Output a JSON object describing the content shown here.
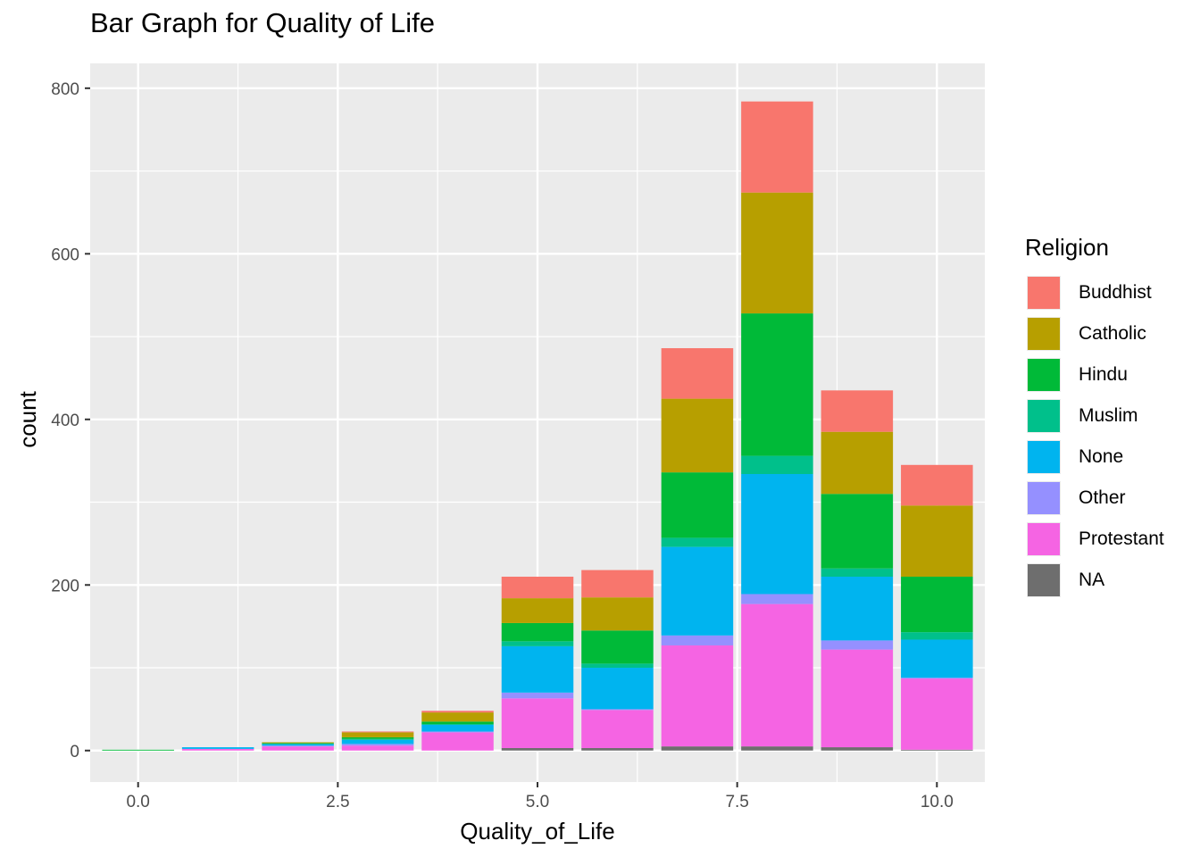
{
  "chart_data": {
    "type": "bar",
    "stacked": true,
    "title": "Bar Graph for Quality of Life",
    "xlabel": "Quality_of_Life",
    "ylabel": "count",
    "x": [
      0,
      1,
      2,
      3,
      4,
      5,
      6,
      7,
      8,
      9,
      10
    ],
    "xlim": [
      -0.6,
      10.6
    ],
    "ylim": [
      -38,
      830
    ],
    "xticks": [
      0,
      2.5,
      5,
      7.5,
      10
    ],
    "xtick_labels": [
      "0.0",
      "2.5",
      "5.0",
      "7.5",
      "10.0"
    ],
    "yticks": [
      0,
      200,
      400,
      600,
      800
    ],
    "ytick_labels": [
      "0",
      "200",
      "400",
      "600",
      "800"
    ],
    "grid": true,
    "legend_title": "Religion",
    "legend_position": "right",
    "series": [
      {
        "name": "Buddhist",
        "color": "#F8766D",
        "values": [
          0,
          0,
          0,
          1,
          2,
          26,
          33,
          61,
          110,
          50,
          49
        ]
      },
      {
        "name": "Catholic",
        "color": "#B79F00",
        "values": [
          0,
          0,
          1,
          6,
          11,
          30,
          40,
          89,
          146,
          75,
          86
        ]
      },
      {
        "name": "Hindu",
        "color": "#00BA38",
        "values": [
          1,
          0,
          1,
          2,
          3,
          22,
          40,
          79,
          172,
          90,
          67
        ]
      },
      {
        "name": "Muslim",
        "color": "#00C08B",
        "values": [
          0,
          0,
          0,
          1,
          1,
          6,
          5,
          11,
          22,
          10,
          9
        ]
      },
      {
        "name": "None",
        "color": "#00B4EF",
        "values": [
          0,
          2,
          2,
          5,
          8,
          56,
          50,
          107,
          145,
          77,
          46
        ]
      },
      {
        "name": "Other",
        "color": "#9590FF",
        "values": [
          0,
          0,
          1,
          2,
          1,
          7,
          1,
          12,
          12,
          11,
          1
        ]
      },
      {
        "name": "Protestant",
        "color": "#F564E3",
        "values": [
          0,
          2,
          5,
          6,
          22,
          60,
          46,
          122,
          172,
          118,
          86
        ]
      },
      {
        "name": "NA",
        "color": "#6E6E6E",
        "values": [
          0,
          0,
          0,
          0,
          0,
          3,
          3,
          5,
          5,
          4,
          1
        ]
      }
    ]
  }
}
